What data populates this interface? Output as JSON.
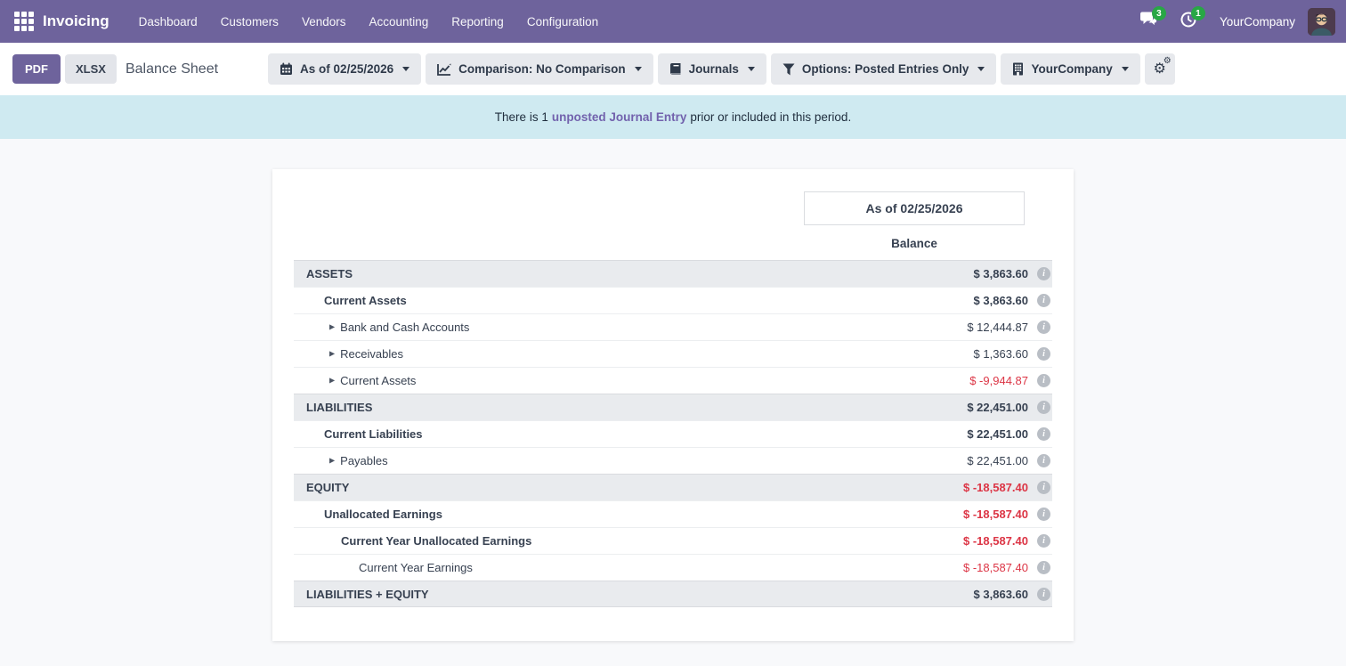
{
  "nav": {
    "app_name": "Invoicing",
    "menu_items": [
      "Dashboard",
      "Customers",
      "Vendors",
      "Accounting",
      "Reporting",
      "Configuration"
    ],
    "message_badge": "3",
    "activity_badge": "1",
    "company": "YourCompany"
  },
  "toolbar": {
    "pdf_label": "PDF",
    "xlsx_label": "XLSX",
    "title": "Balance Sheet",
    "filters": [
      {
        "icon": "calendar-icon",
        "label": "As of 02/25/2026"
      },
      {
        "icon": "chart-line-icon",
        "label": "Comparison: No Comparison"
      },
      {
        "icon": "book-icon",
        "label": "Journals"
      },
      {
        "icon": "funnel-icon",
        "label": "Options: Posted Entries Only"
      },
      {
        "icon": "building-icon",
        "label": "YourCompany"
      }
    ]
  },
  "banner": {
    "text_before": "There is 1",
    "link_text": "unposted Journal Entry",
    "text_after": "prior or included in this period."
  },
  "report": {
    "column_date": "As of 02/25/2026",
    "column_label": "Balance",
    "rows": [
      {
        "label": "ASSETS",
        "value": "$ 3,863.60",
        "level": 0,
        "section": true,
        "bold": true,
        "negative": false,
        "expandable": false
      },
      {
        "label": "Current Assets",
        "value": "$ 3,863.60",
        "level": 1,
        "section": false,
        "bold": true,
        "negative": false,
        "expandable": false
      },
      {
        "label": "Bank and Cash Accounts",
        "value": "$ 12,444.87",
        "level": 2,
        "section": false,
        "bold": false,
        "negative": false,
        "expandable": true
      },
      {
        "label": "Receivables",
        "value": "$ 1,363.60",
        "level": 2,
        "section": false,
        "bold": false,
        "negative": false,
        "expandable": true
      },
      {
        "label": "Current Assets",
        "value": "$ -9,944.87",
        "level": 2,
        "section": false,
        "bold": false,
        "negative": true,
        "expandable": true
      },
      {
        "label": "LIABILITIES",
        "value": "$ 22,451.00",
        "level": 0,
        "section": true,
        "bold": true,
        "negative": false,
        "expandable": false
      },
      {
        "label": "Current Liabilities",
        "value": "$ 22,451.00",
        "level": 1,
        "section": false,
        "bold": true,
        "negative": false,
        "expandable": false
      },
      {
        "label": "Payables",
        "value": "$ 22,451.00",
        "level": 2,
        "section": false,
        "bold": false,
        "negative": false,
        "expandable": true
      },
      {
        "label": "EQUITY",
        "value": "$ -18,587.40",
        "level": 0,
        "section": true,
        "bold": true,
        "negative": true,
        "expandable": false
      },
      {
        "label": "Unallocated Earnings",
        "value": "$ -18,587.40",
        "level": 1,
        "section": false,
        "bold": true,
        "negative": true,
        "expandable": false
      },
      {
        "label": "Current Year Unallocated Earnings",
        "value": "$ -18,587.40",
        "level": 2,
        "section": false,
        "bold": true,
        "negative": true,
        "expandable": false
      },
      {
        "label": "Current Year Earnings",
        "value": "$ -18,587.40",
        "level": 3,
        "section": false,
        "bold": false,
        "negative": true,
        "expandable": false
      },
      {
        "label": "LIABILITIES + EQUITY",
        "value": "$ 3,863.60",
        "level": 0,
        "section": true,
        "bold": true,
        "negative": false,
        "expandable": false
      }
    ]
  },
  "colors": {
    "nav_purple": "#6e639c",
    "badge_green": "#28a745",
    "negative_red": "#dc3545",
    "link_purple": "#7262ad",
    "banner_bg": "#cfeaf1",
    "section_row_bg": "#e9ebee",
    "button_gray": "#e7e9ed",
    "text": "#374151"
  }
}
